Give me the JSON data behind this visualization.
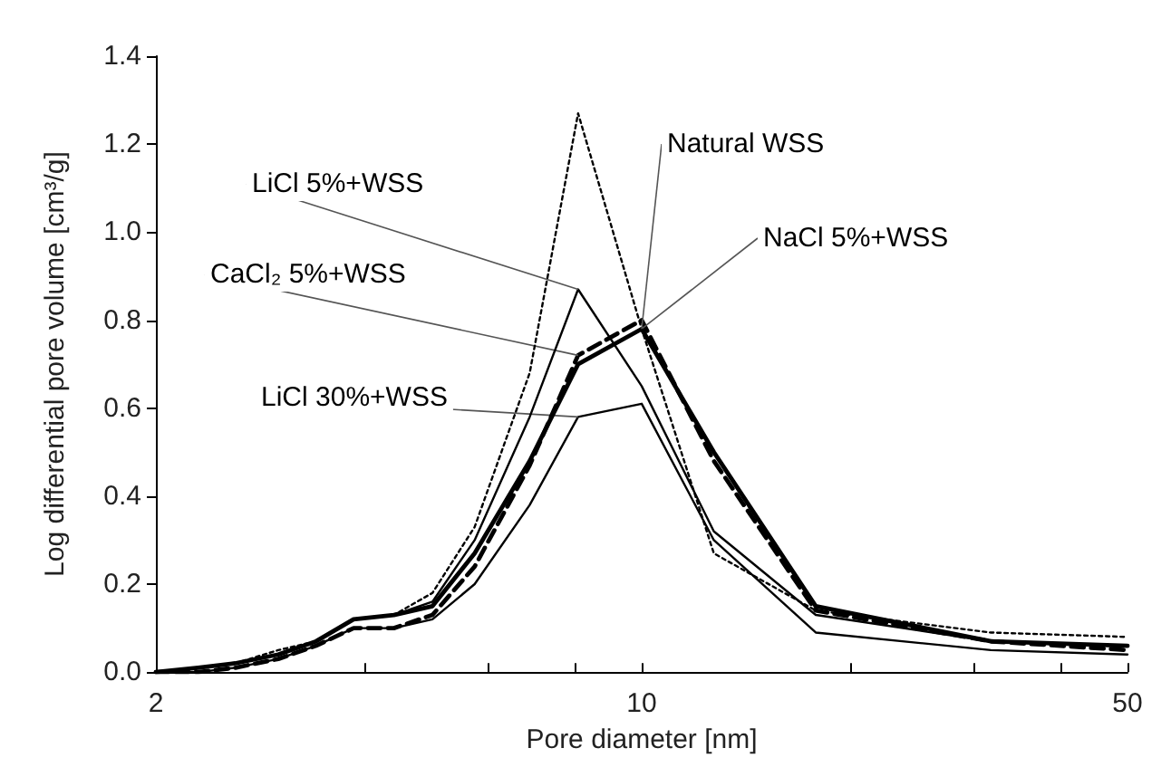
{
  "chart_data": {
    "type": "line",
    "xlabel": "Pore diameter [nm]",
    "ylabel": "Log differential pore volume [cm³/g]",
    "x": [
      2,
      2.3,
      2.6,
      3.0,
      3.4,
      3.85,
      4.4,
      5.0,
      5.75,
      6.9,
      8.1,
      10,
      12.7,
      17.8,
      31.8,
      50
    ],
    "series": [
      {
        "name": "Natural WSS",
        "color": "#000000",
        "line_style": "dotted",
        "values": [
          0,
          0.01,
          0.02,
          0.05,
          0.07,
          0.12,
          0.13,
          0.18,
          0.33,
          0.68,
          1.27,
          0.78,
          0.27,
          0.14,
          0.09,
          0.08
        ]
      },
      {
        "name": "LiCl 5%+WSS",
        "color": "#000000",
        "line_style": "solid",
        "values": [
          0,
          0.01,
          0.02,
          0.04,
          0.07,
          0.12,
          0.13,
          0.16,
          0.3,
          0.58,
          0.87,
          0.65,
          0.32,
          0.13,
          0.07,
          0.06
        ]
      },
      {
        "name": "NaCl 5%+WSS",
        "color": "#000000",
        "line_style": "solid",
        "values": [
          0,
          0.01,
          0.02,
          0.04,
          0.07,
          0.12,
          0.13,
          0.15,
          0.27,
          0.48,
          0.7,
          0.78,
          0.5,
          0.15,
          0.07,
          0.06
        ]
      },
      {
        "name": "CaCl₂ 5%+WSS",
        "color": "#000000",
        "line_style": "dashed",
        "values": [
          0,
          0,
          0.01,
          0.03,
          0.06,
          0.1,
          0.1,
          0.13,
          0.24,
          0.47,
          0.72,
          0.8,
          0.48,
          0.14,
          0.07,
          0.05
        ]
      },
      {
        "name": "LiCl 30%+WSS",
        "color": "#000000",
        "line_style": "solid",
        "values": [
          0,
          0,
          0.01,
          0.03,
          0.06,
          0.1,
          0.1,
          0.12,
          0.2,
          0.38,
          0.58,
          0.61,
          0.3,
          0.09,
          0.05,
          0.04
        ]
      }
    ],
    "log": "x",
    "xlim": [
      2,
      50
    ],
    "xticks": [
      2,
      {
        "value": 4,
        "label": null
      },
      {
        "value": 6,
        "label": null
      },
      {
        "value": 8,
        "label": null
      },
      10,
      {
        "value": 20,
        "label": null
      },
      {
        "value": 30,
        "label": null
      },
      {
        "value": 40,
        "label": null
      },
      50
    ],
    "ylim": [
      0,
      1.4
    ],
    "yticks": [
      {
        "value": 0,
        "label": "0.0"
      },
      {
        "value": 0.2,
        "label": "0.2"
      },
      {
        "value": 0.4,
        "label": "0.4"
      },
      {
        "value": 0.6,
        "label": "0.6"
      },
      {
        "value": 0.8,
        "label": "0.8"
      },
      {
        "value": 1.0,
        "label": "1.0"
      },
      {
        "value": 1.2,
        "label": "1.2"
      },
      {
        "value": 1.4,
        "label": "1.4"
      }
    ],
    "grid": false,
    "legend": false,
    "marker": "none"
  }
}
